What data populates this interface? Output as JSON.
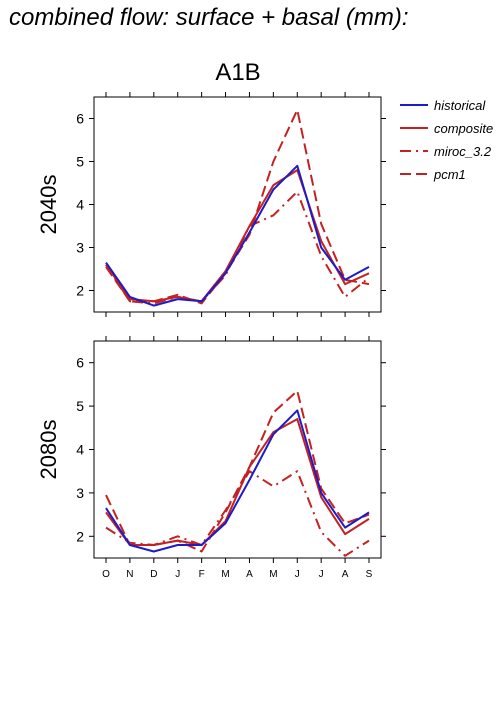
{
  "page_title": "combined flow: surface + basal (mm):",
  "scenario_title": "A1B",
  "panel_labels": [
    "2040s",
    "2080s"
  ],
  "legend": [
    {
      "label": "historical",
      "color": "#1c1cc9",
      "dash": "solid"
    },
    {
      "label": "composite",
      "color": "#c42121",
      "dash": "solid"
    },
    {
      "label": "miroc_3.2",
      "color": "#c42121",
      "dash": "dashdot"
    },
    {
      "label": "pcm1",
      "color": "#c42121",
      "dash": "dashed"
    }
  ],
  "chart_data": [
    {
      "type": "line",
      "title": "2040s",
      "categories": [
        "O",
        "N",
        "D",
        "J",
        "F",
        "M",
        "A",
        "M",
        "J",
        "J",
        "A",
        "S"
      ],
      "ylim": [
        1.5,
        6.5
      ],
      "yticks": [
        2,
        3,
        4,
        5,
        6
      ],
      "series": [
        {
          "name": "historical",
          "values": [
            2.65,
            1.85,
            1.65,
            1.8,
            1.75,
            2.4,
            3.35,
            4.35,
            4.9,
            3.0,
            2.25,
            2.55
          ]
        },
        {
          "name": "composite",
          "values": [
            2.6,
            1.8,
            1.75,
            1.85,
            1.75,
            2.45,
            3.5,
            4.45,
            4.8,
            3.15,
            2.15,
            2.4
          ]
        },
        {
          "name": "miroc_3.2",
          "values": [
            2.6,
            1.75,
            1.7,
            1.85,
            1.75,
            2.35,
            3.5,
            3.75,
            4.3,
            2.8,
            1.85,
            2.3
          ]
        },
        {
          "name": "pcm1",
          "values": [
            2.55,
            1.75,
            1.75,
            1.9,
            1.7,
            2.4,
            3.3,
            5.0,
            6.2,
            3.55,
            2.25,
            2.15
          ]
        }
      ]
    },
    {
      "type": "line",
      "title": "2080s",
      "categories": [
        "O",
        "N",
        "D",
        "J",
        "F",
        "M",
        "A",
        "M",
        "J",
        "J",
        "A",
        "S"
      ],
      "ylim": [
        1.5,
        6.5
      ],
      "yticks": [
        2,
        3,
        4,
        5,
        6
      ],
      "series": [
        {
          "name": "historical",
          "values": [
            2.65,
            1.8,
            1.65,
            1.8,
            1.8,
            2.3,
            3.3,
            4.35,
            4.9,
            3.0,
            2.2,
            2.55
          ]
        },
        {
          "name": "composite",
          "values": [
            2.55,
            1.8,
            1.8,
            1.9,
            1.8,
            2.35,
            3.6,
            4.4,
            4.7,
            2.9,
            2.05,
            2.4
          ]
        },
        {
          "name": "miroc_3.2",
          "values": [
            2.2,
            1.85,
            1.8,
            2.0,
            1.8,
            2.6,
            3.5,
            3.15,
            3.5,
            2.1,
            1.55,
            1.9
          ]
        },
        {
          "name": "pcm1",
          "values": [
            2.95,
            1.8,
            1.8,
            1.9,
            1.65,
            2.55,
            3.6,
            4.85,
            5.35,
            3.1,
            2.3,
            2.5
          ]
        }
      ]
    }
  ]
}
